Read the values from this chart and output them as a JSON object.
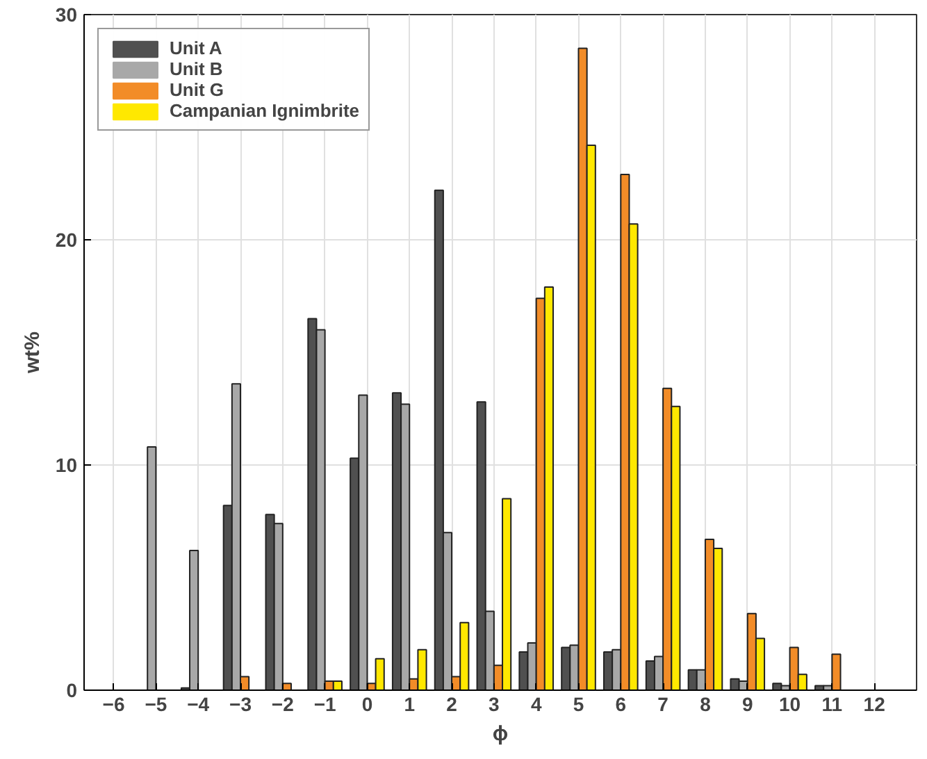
{
  "chart_data": {
    "type": "bar",
    "xlabel": "ϕ",
    "ylabel": "wt%",
    "x": [
      -6,
      -5,
      -4,
      -3,
      -2,
      -1,
      0,
      1,
      2,
      3,
      4,
      5,
      6,
      7,
      8,
      9,
      10,
      11,
      12
    ],
    "series": [
      {
        "name": "Unit A",
        "color": "#505050",
        "values": [
          0,
          0,
          0.1,
          8.2,
          7.8,
          16.5,
          10.3,
          13.2,
          22.2,
          12.8,
          1.7,
          1.9,
          1.7,
          1.3,
          0.9,
          0.5,
          0.3,
          0.2,
          0
        ]
      },
      {
        "name": "Unit B",
        "color": "#a8a8a8",
        "values": [
          0,
          10.8,
          6.2,
          13.6,
          7.4,
          16.0,
          13.1,
          12.7,
          7.0,
          3.5,
          2.1,
          2.0,
          1.8,
          1.5,
          0.9,
          0.4,
          0.2,
          0.2,
          0
        ]
      },
      {
        "name": "Unit G",
        "color": "#f28c28",
        "values": [
          0,
          0,
          0,
          0.6,
          0.3,
          0.4,
          0.3,
          0.5,
          0.6,
          1.1,
          17.4,
          28.5,
          22.9,
          13.4,
          6.7,
          3.4,
          1.9,
          1.6,
          0
        ]
      },
      {
        "name": "Campanian Ignimbrite",
        "color": "#ffe800",
        "values": [
          0,
          0,
          0,
          0,
          0,
          0.4,
          1.4,
          1.8,
          3.0,
          8.5,
          17.9,
          24.2,
          20.7,
          12.6,
          6.3,
          2.3,
          0.7,
          0,
          0
        ]
      }
    ],
    "xlim": [
      -6.7,
      13
    ],
    "xticks": [
      -6,
      -5,
      -4,
      -3,
      -2,
      -1,
      0,
      1,
      2,
      3,
      4,
      5,
      6,
      7,
      8,
      9,
      10,
      11,
      12
    ],
    "ylim": [
      0,
      30
    ],
    "yticks": [
      0,
      10,
      20,
      30
    ],
    "grid": true,
    "legend": "top left"
  }
}
